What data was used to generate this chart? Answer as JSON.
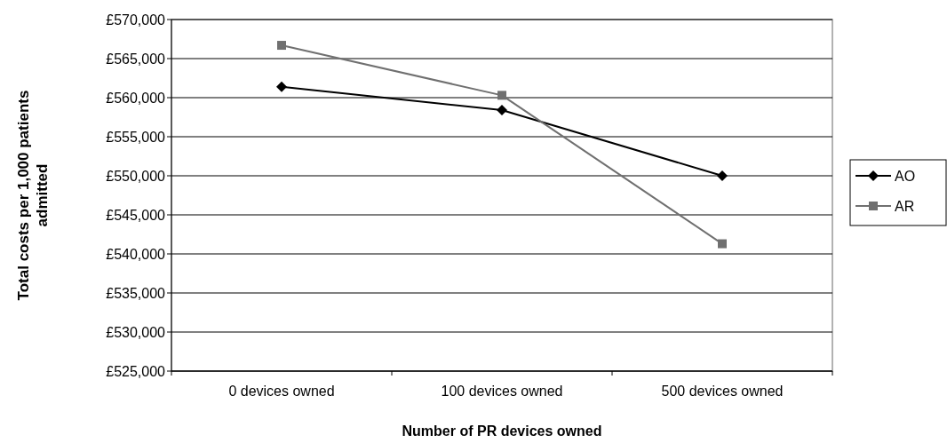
{
  "chart_data": {
    "type": "line",
    "xlabel": "Number of PR devices owned",
    "ylabel": "Total costs per 1,000 patients admitted",
    "categories": [
      "0 devices owned",
      "100 devices owned",
      "500 devices owned"
    ],
    "series": [
      {
        "name": "AO",
        "color": "#000000",
        "marker": "diamond",
        "values": [
          561400,
          558400,
          550000
        ]
      },
      {
        "name": "AR",
        "color": "#707070",
        "marker": "square",
        "values": [
          566700,
          560300,
          541300
        ]
      }
    ],
    "ylim": [
      525000,
      570000
    ],
    "yticks": [
      {
        "value": 525000,
        "label": "£525,000"
      },
      {
        "value": 530000,
        "label": "£530,000"
      },
      {
        "value": 535000,
        "label": "£535,000"
      },
      {
        "value": 540000,
        "label": "£540,000"
      },
      {
        "value": 545000,
        "label": "£545,000"
      },
      {
        "value": 550000,
        "label": "£550,000"
      },
      {
        "value": 555000,
        "label": "£555,000"
      },
      {
        "value": 560000,
        "label": "£560,000"
      },
      {
        "value": 565000,
        "label": "£565,000"
      },
      {
        "value": 570000,
        "label": "£570,000"
      }
    ],
    "grid": "y",
    "legend": "right"
  }
}
